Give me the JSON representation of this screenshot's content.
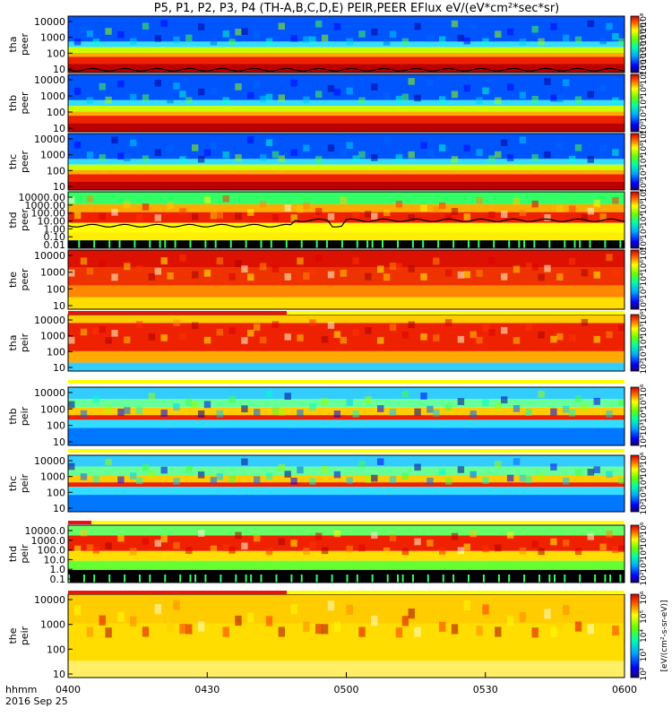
{
  "chart_data": {
    "type": "heatmap",
    "title": "P5, P1, P2, P3, P4 (TH-A,B,C,D,E) PEIR,PEER EFlux eV/(eV*cm²*sec*sr)",
    "x_ticks": [
      "0400",
      "0430",
      "0500",
      "0530",
      "0600"
    ],
    "x_corner_label": [
      "hhmm",
      "2016 Sep 25"
    ],
    "x_range": [
      "0400",
      "0600"
    ],
    "colorbar_unit": "[eV/(cm²-s-sr-eV)]",
    "panels": [
      {
        "ylabel": [
          "tha",
          "peer"
        ],
        "yticks": [
          "10000",
          "1000",
          "100",
          "10"
        ],
        "cb_ticks": [
          "10⁸",
          "10⁷",
          "10⁶",
          "10⁵",
          "10⁴",
          "10³",
          "10²",
          "10¹",
          "10⁰"
        ],
        "colormap": "peer_low",
        "overlay_line": true,
        "mode_bar": false
      },
      {
        "ylabel": [
          "thb",
          "peer"
        ],
        "yticks": [
          "10000",
          "1000",
          "100",
          "10"
        ],
        "cb_ticks": [
          "10⁸",
          "10⁶",
          "10⁴",
          "10²",
          "10⁰"
        ],
        "colormap": "peer_low",
        "overlay_line": false,
        "mode_bar": false
      },
      {
        "ylabel": [
          "thc",
          "peer"
        ],
        "yticks": [
          "10000",
          "1000",
          "100",
          "10"
        ],
        "cb_ticks": [
          "10⁸",
          "10⁶",
          "10⁴",
          "10²",
          "10⁰"
        ],
        "colormap": "peer_low",
        "overlay_line": false,
        "mode_bar": false
      },
      {
        "ylabel": [
          "thd",
          "peer"
        ],
        "yticks": [
          "10000.00",
          "1000.00",
          "100.00",
          "10.00",
          "1.00",
          "0.10",
          "0.01"
        ],
        "cb_ticks": [
          "10⁸",
          "10⁶",
          "10⁴",
          "10²",
          "10⁰"
        ],
        "colormap": "peer_thd",
        "overlay_line": true,
        "mode_bar": true
      },
      {
        "ylabel": [
          "the",
          "peer"
        ],
        "yticks": [
          "10000",
          "1000",
          "100",
          "10"
        ],
        "cb_ticks": [
          "10⁸",
          "10⁶",
          "10⁴",
          "10²",
          "10⁰"
        ],
        "colormap": "peer_the",
        "overlay_line": false,
        "mode_bar": false
      },
      {
        "ylabel": [
          "tha",
          "peir"
        ],
        "yticks": [
          "10000",
          "1000",
          "100",
          "10"
        ],
        "cb_ticks": [
          "10⁶",
          "10⁵",
          "10⁴",
          "10³",
          "10²"
        ],
        "colormap": "peir_a",
        "overlay_line": false,
        "mode_bar": false
      },
      {
        "ylabel": [
          "thb",
          "peir"
        ],
        "yticks": [
          "10000",
          "1000",
          "100",
          "10"
        ],
        "cb_ticks": [
          "10⁶",
          "10⁵",
          "10⁴",
          "10³",
          "10²"
        ],
        "colormap": "peir_bc",
        "overlay_line": false,
        "mode_bar": false
      },
      {
        "ylabel": [
          "thc",
          "peir"
        ],
        "yticks": [
          "10000",
          "1000",
          "100",
          "10"
        ],
        "cb_ticks": [
          "10⁶",
          "10⁵",
          "10⁴",
          "10³",
          "10²"
        ],
        "colormap": "peir_bc",
        "overlay_line": false,
        "mode_bar": false
      },
      {
        "ylabel": [
          "thd",
          "peir"
        ],
        "yticks": [
          "10000.0",
          "1000.0",
          "100.0",
          "10.0",
          "1.0",
          "0.1"
        ],
        "cb_ticks": [
          "10⁶",
          "10⁵",
          "10⁴",
          "10³",
          "10²"
        ],
        "colormap": "peir_thd",
        "overlay_line": false,
        "mode_bar": true
      },
      {
        "ylabel": [
          "the",
          "peir"
        ],
        "yticks": [
          "10000",
          "1000",
          "100",
          "10"
        ],
        "cb_ticks": [
          "10⁶",
          "10⁵",
          "10⁴",
          "10³",
          "10²"
        ],
        "colormap": "peir_the",
        "overlay_line": false,
        "mode_bar": false
      }
    ],
    "legend": "right-colorbars",
    "grid": false
  },
  "colors": {
    "red_bar": "#ee1111",
    "yellow_bar": "#ffff00",
    "frame": "#000000"
  }
}
